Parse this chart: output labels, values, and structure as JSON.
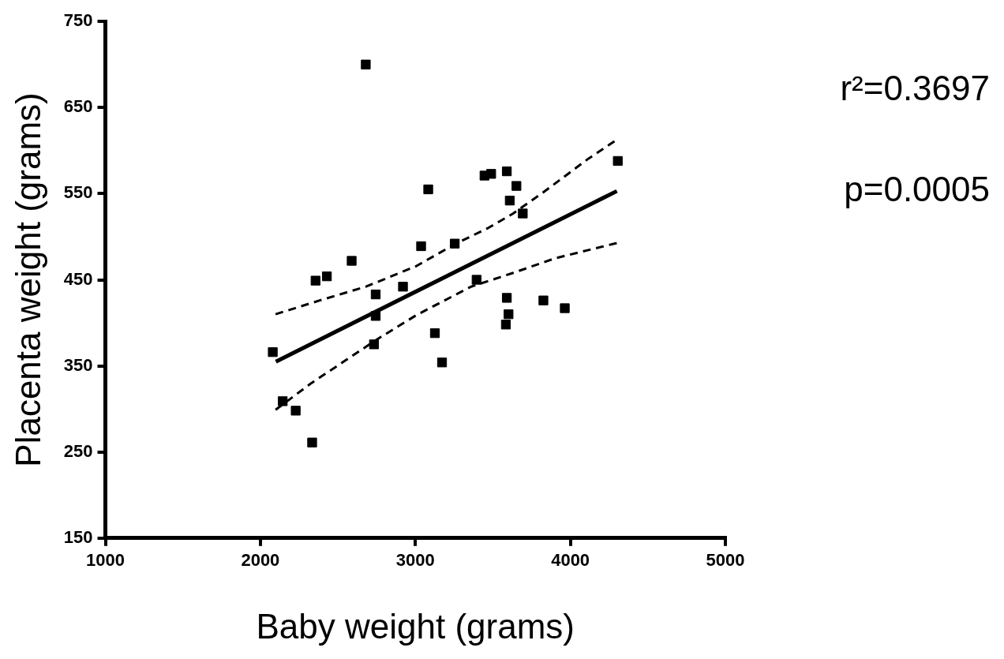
{
  "chart_data": {
    "type": "scatter",
    "xlabel": "Baby weight (grams)",
    "ylabel": "Placenta weight (grams)",
    "xlim": [
      1000,
      5000
    ],
    "xticks": [
      1000,
      2000,
      3000,
      4000,
      5000
    ],
    "ylim": [
      150,
      750
    ],
    "yticks": [
      150,
      250,
      350,
      450,
      550,
      650,
      750
    ],
    "grid": false,
    "legend": false,
    "annotations": [
      "r²=0.3697",
      "p=0.0005"
    ],
    "series": [
      {
        "color": "#000000",
        "marker": "square",
        "x": [
          2680,
          2080,
          2144,
          2228,
          2334,
          2356,
          2429,
          2589,
          2744,
          2744,
          2733,
          2920,
          3037,
          3083,
          3126,
          3172,
          3254,
          3395,
          3446,
          3489,
          3590,
          3652,
          3609,
          3693,
          3590,
          3601,
          3584,
          3826,
          3964,
          4306
        ],
        "values": [
          700,
          366,
          309,
          298,
          261,
          449,
          454,
          472,
          433,
          408,
          375,
          442,
          489,
          555,
          388,
          354,
          492,
          450,
          571,
          573,
          576,
          559,
          542,
          527,
          429,
          410,
          398,
          426,
          417,
          588
        ]
      },
      {
        "type": "line",
        "color": "#000000",
        "marker": "none",
        "line_style": "solid",
        "x": [
          2100,
          4300
        ],
        "values": [
          355,
          553
        ]
      },
      {
        "type": "line",
        "color": "#000000",
        "marker": "none",
        "line_style": "dashed",
        "x": [
          2098,
          2383,
          2681,
          3007,
          3251,
          3468,
          3631,
          3821,
          4119,
          4295
        ],
        "values": [
          410,
          426,
          442,
          466,
          491,
          510,
          527,
          551,
          591,
          612
        ]
      },
      {
        "type": "line",
        "color": "#000000",
        "marker": "none",
        "line_style": "dashed",
        "x": [
          2098,
          2329,
          2546,
          2763,
          3007,
          3359,
          3631,
          3902,
          4308
        ],
        "values": [
          299,
          330,
          356,
          382,
          409,
          442,
          458,
          475,
          493
        ]
      }
    ]
  }
}
